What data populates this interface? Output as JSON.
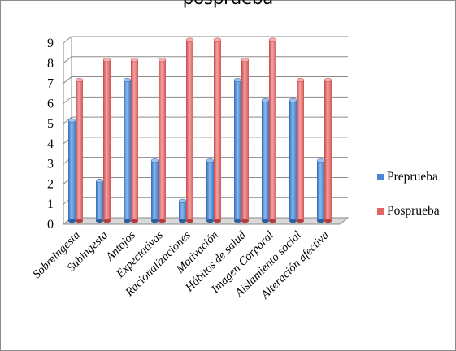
{
  "chart_data": {
    "type": "bar",
    "title": "posprueba",
    "categories": [
      "Sobreingesta",
      "Subingesta",
      "Antojos",
      "Expectativas",
      "Racionalizaciones",
      "Motivación",
      "Hábitos de salud",
      "Imagen Corporal",
      "Aislamiento social",
      "Alteración afectiva"
    ],
    "series": [
      {
        "name": "Preprueba",
        "color": "#4a86d4",
        "values": [
          5,
          2,
          7,
          3,
          1,
          3,
          7,
          6,
          6,
          3
        ]
      },
      {
        "name": "Posprueba",
        "color": "#e06464",
        "values": [
          7,
          8,
          8,
          8,
          9,
          9,
          8,
          9,
          7,
          7
        ]
      }
    ],
    "yticks": [
      "0",
      "1",
      "2",
      "3",
      "4",
      "5",
      "6",
      "7",
      "8",
      "9"
    ],
    "ylim": [
      0,
      9
    ],
    "grid": true,
    "legend_position": "right",
    "xlabel": "",
    "ylabel": ""
  }
}
